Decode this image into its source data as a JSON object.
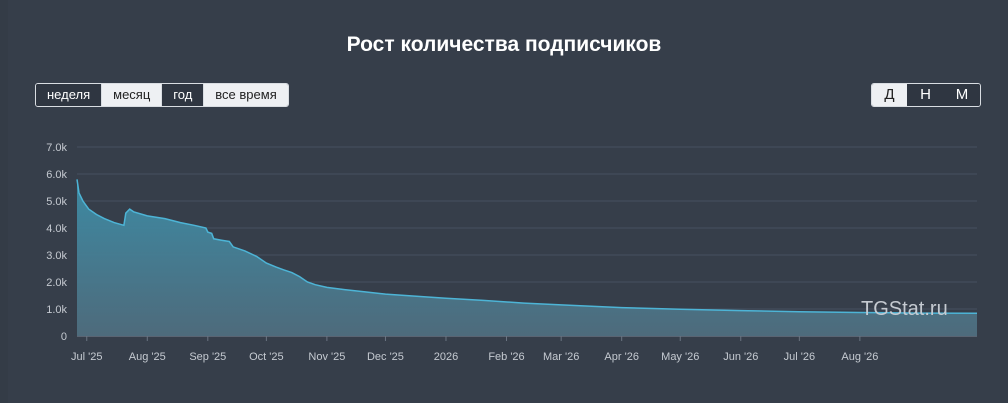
{
  "title": "Рост количества подписчиков",
  "range_buttons": [
    {
      "label": "неделя",
      "active": true
    },
    {
      "label": "месяц",
      "active": false
    },
    {
      "label": "год",
      "active": true
    },
    {
      "label": "все время",
      "active": false
    }
  ],
  "granularity_buttons": [
    {
      "label": "Д",
      "active": false
    },
    {
      "label": "Н",
      "active": true
    },
    {
      "label": "М",
      "active": true
    }
  ],
  "watermark": "TGStat.ru",
  "colors": {
    "background": "#363e4a",
    "line": "#4db4d6",
    "area_top": "#3d8ea8",
    "area_bottom": "#4f6d7e",
    "grid": "#465060",
    "text": "#c5cad1"
  },
  "chart_data": {
    "type": "area",
    "title": "Рост количества подписчиков",
    "xlabel": "",
    "ylabel": "",
    "ylim": [
      0,
      7000
    ],
    "y_ticks": [
      {
        "value": 0,
        "label": "0"
      },
      {
        "value": 1000,
        "label": "1.0k"
      },
      {
        "value": 2000,
        "label": "2.0k"
      },
      {
        "value": 3000,
        "label": "3.0k"
      },
      {
        "value": 4000,
        "label": "4.0k"
      },
      {
        "value": 5000,
        "label": "5.0k"
      },
      {
        "value": 6000,
        "label": "6.0k"
      },
      {
        "value": 7000,
        "label": "7.0k"
      }
    ],
    "xlim": [
      "2025-06-26",
      "2026-09-30"
    ],
    "x_ticks": [
      {
        "date": "2025-07-01",
        "label": "Jul '25"
      },
      {
        "date": "2025-08-01",
        "label": "Aug '25"
      },
      {
        "date": "2025-09-01",
        "label": "Sep '25"
      },
      {
        "date": "2025-10-01",
        "label": "Oct '25"
      },
      {
        "date": "2025-11-01",
        "label": "Nov '25"
      },
      {
        "date": "2025-12-01",
        "label": "Dec '25"
      },
      {
        "date": "2026-01-01",
        "label": "2026"
      },
      {
        "date": "2026-02-01",
        "label": "Feb '26"
      },
      {
        "date": "2026-03-01",
        "label": "Mar '26"
      },
      {
        "date": "2026-04-01",
        "label": "Apr '26"
      },
      {
        "date": "2026-05-01",
        "label": "May '26"
      },
      {
        "date": "2026-06-01",
        "label": "Jun '26"
      },
      {
        "date": "2026-07-01",
        "label": "Jul '26"
      },
      {
        "date": "2026-08-01",
        "label": "Aug '26"
      }
    ],
    "grid": true,
    "series": [
      {
        "points": [
          [
            "2025-06-26",
            5800
          ],
          [
            "2025-06-27",
            5300
          ],
          [
            "2025-06-29",
            5000
          ],
          [
            "2025-07-02",
            4700
          ],
          [
            "2025-07-06",
            4500
          ],
          [
            "2025-07-10",
            4350
          ],
          [
            "2025-07-15",
            4200
          ],
          [
            "2025-07-20",
            4100
          ],
          [
            "2025-07-21",
            4550
          ],
          [
            "2025-07-23",
            4700
          ],
          [
            "2025-07-25",
            4600
          ],
          [
            "2025-08-01",
            4450
          ],
          [
            "2025-08-10",
            4350
          ],
          [
            "2025-08-18",
            4200
          ],
          [
            "2025-08-25",
            4100
          ],
          [
            "2025-08-31",
            4000
          ],
          [
            "2025-09-01",
            3850
          ],
          [
            "2025-09-03",
            3800
          ],
          [
            "2025-09-04",
            3600
          ],
          [
            "2025-09-08",
            3550
          ],
          [
            "2025-09-12",
            3500
          ],
          [
            "2025-09-14",
            3300
          ],
          [
            "2025-09-20",
            3150
          ],
          [
            "2025-09-26",
            2950
          ],
          [
            "2025-10-01",
            2700
          ],
          [
            "2025-10-06",
            2550
          ],
          [
            "2025-10-10",
            2450
          ],
          [
            "2025-10-14",
            2350
          ],
          [
            "2025-10-18",
            2200
          ],
          [
            "2025-10-22",
            2000
          ],
          [
            "2025-10-26",
            1900
          ],
          [
            "2025-11-01",
            1800
          ],
          [
            "2025-11-10",
            1720
          ],
          [
            "2025-11-20",
            1640
          ],
          [
            "2025-12-01",
            1550
          ],
          [
            "2025-12-15",
            1480
          ],
          [
            "2026-01-01",
            1400
          ],
          [
            "2026-01-20",
            1320
          ],
          [
            "2026-02-10",
            1220
          ],
          [
            "2026-03-01",
            1150
          ],
          [
            "2026-04-01",
            1050
          ],
          [
            "2026-05-01",
            990
          ],
          [
            "2026-06-01",
            940
          ],
          [
            "2026-07-01",
            900
          ],
          [
            "2026-08-01",
            870
          ],
          [
            "2026-09-01",
            850
          ],
          [
            "2026-09-30",
            840
          ]
        ]
      }
    ]
  }
}
